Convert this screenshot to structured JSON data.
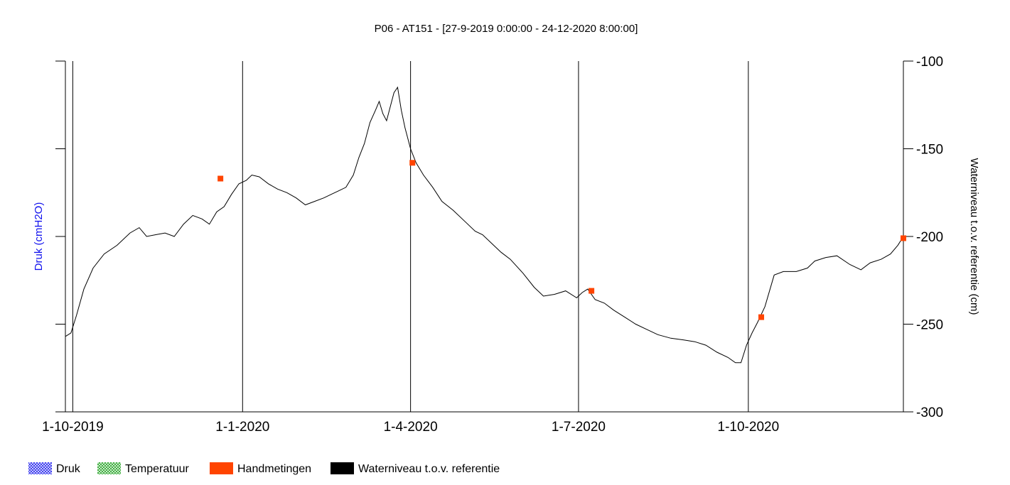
{
  "chart_data": {
    "type": "line",
    "title": "P06 - AT151 -  [27-9-2019 0:00:00 - 24-12-2020 8:00:00]",
    "ylabel_left": "Druk (cmH2O)",
    "ylabel_right": "Waterniveau t.o.v. referentie (cm)",
    "xlim": [
      "2019-09-27",
      "2020-12-24"
    ],
    "ylim": [
      -300,
      -100
    ],
    "yticks": [
      -100,
      -150,
      -200,
      -250,
      -300
    ],
    "xticks": [
      {
        "date": "2019-10-01",
        "label": "1-10-2019"
      },
      {
        "date": "2020-01-01",
        "label": "1-1-2020"
      },
      {
        "date": "2020-04-01",
        "label": "1-4-2020"
      },
      {
        "date": "2020-07-01",
        "label": "1-7-2020"
      },
      {
        "date": "2020-10-01",
        "label": "1-10-2020"
      }
    ],
    "grid": "vertical at x ticks",
    "series": [
      {
        "name": "Waterniveau t.o.v. referentie",
        "color": "#000000",
        "points": [
          [
            "2019-09-27",
            -257
          ],
          [
            "2019-09-30",
            -255
          ],
          [
            "2019-10-03",
            -245
          ],
          [
            "2019-10-07",
            -230
          ],
          [
            "2019-10-12",
            -218
          ],
          [
            "2019-10-18",
            -210
          ],
          [
            "2019-10-25",
            -205
          ],
          [
            "2019-11-01",
            -198
          ],
          [
            "2019-11-06",
            -195
          ],
          [
            "2019-11-10",
            -200
          ],
          [
            "2019-11-15",
            -199
          ],
          [
            "2019-11-20",
            -198
          ],
          [
            "2019-11-25",
            -200
          ],
          [
            "2019-11-30",
            -193
          ],
          [
            "2019-12-05",
            -188
          ],
          [
            "2019-12-10",
            -190
          ],
          [
            "2019-12-14",
            -193
          ],
          [
            "2019-12-18",
            -186
          ],
          [
            "2019-12-22",
            -183
          ],
          [
            "2019-12-26",
            -176
          ],
          [
            "2019-12-30",
            -170
          ],
          [
            "2020-01-03",
            -168
          ],
          [
            "2020-01-06",
            -165
          ],
          [
            "2020-01-10",
            -166
          ],
          [
            "2020-01-15",
            -170
          ],
          [
            "2020-01-20",
            -173
          ],
          [
            "2020-01-25",
            -175
          ],
          [
            "2020-01-30",
            -178
          ],
          [
            "2020-02-04",
            -182
          ],
          [
            "2020-02-09",
            -180
          ],
          [
            "2020-02-14",
            -178
          ],
          [
            "2020-02-18",
            -176
          ],
          [
            "2020-02-22",
            -174
          ],
          [
            "2020-02-26",
            -172
          ],
          [
            "2020-03-01",
            -165
          ],
          [
            "2020-03-04",
            -155
          ],
          [
            "2020-03-07",
            -147
          ],
          [
            "2020-03-10",
            -135
          ],
          [
            "2020-03-13",
            -128
          ],
          [
            "2020-03-15",
            -123
          ],
          [
            "2020-03-17",
            -130
          ],
          [
            "2020-03-19",
            -134
          ],
          [
            "2020-03-21",
            -126
          ],
          [
            "2020-03-23",
            -118
          ],
          [
            "2020-03-25",
            -115
          ],
          [
            "2020-03-27",
            -128
          ],
          [
            "2020-03-29",
            -138
          ],
          [
            "2020-04-01",
            -150
          ],
          [
            "2020-04-04",
            -158
          ],
          [
            "2020-04-08",
            -165
          ],
          [
            "2020-04-13",
            -172
          ],
          [
            "2020-04-18",
            -180
          ],
          [
            "2020-04-24",
            -185
          ],
          [
            "2020-05-01",
            -192
          ],
          [
            "2020-05-06",
            -197
          ],
          [
            "2020-05-10",
            -199
          ],
          [
            "2020-05-15",
            -204
          ],
          [
            "2020-05-20",
            -209
          ],
          [
            "2020-05-25",
            -213
          ],
          [
            "2020-06-01",
            -221
          ],
          [
            "2020-06-07",
            -229
          ],
          [
            "2020-06-12",
            -234
          ],
          [
            "2020-06-18",
            -233
          ],
          [
            "2020-06-24",
            -231
          ],
          [
            "2020-06-30",
            -235
          ],
          [
            "2020-07-03",
            -232
          ],
          [
            "2020-07-06",
            -230
          ],
          [
            "2020-07-10",
            -236
          ],
          [
            "2020-07-15",
            -238
          ],
          [
            "2020-07-20",
            -242
          ],
          [
            "2020-07-26",
            -246
          ],
          [
            "2020-08-01",
            -250
          ],
          [
            "2020-08-07",
            -253
          ],
          [
            "2020-08-13",
            -256
          ],
          [
            "2020-08-20",
            -258
          ],
          [
            "2020-08-27",
            -259
          ],
          [
            "2020-09-02",
            -260
          ],
          [
            "2020-09-08",
            -262
          ],
          [
            "2020-09-14",
            -266
          ],
          [
            "2020-09-20",
            -269
          ],
          [
            "2020-09-24",
            -272
          ],
          [
            "2020-09-27",
            -272
          ],
          [
            "2020-09-30",
            -262
          ],
          [
            "2020-10-03",
            -255
          ],
          [
            "2020-10-06",
            -249
          ],
          [
            "2020-10-10",
            -240
          ],
          [
            "2020-10-15",
            -222
          ],
          [
            "2020-10-20",
            -220
          ],
          [
            "2020-10-27",
            -220
          ],
          [
            "2020-11-02",
            -218
          ],
          [
            "2020-11-06",
            -214
          ],
          [
            "2020-11-12",
            -212
          ],
          [
            "2020-11-18",
            -211
          ],
          [
            "2020-11-25",
            -216
          ],
          [
            "2020-12-01",
            -219
          ],
          [
            "2020-12-06",
            -215
          ],
          [
            "2020-12-12",
            -213
          ],
          [
            "2020-12-17",
            -210
          ],
          [
            "2020-12-21",
            -205
          ],
          [
            "2020-12-24",
            -200
          ]
        ]
      },
      {
        "name": "Handmetingen",
        "color": "#ff4400",
        "points": [
          [
            "2019-12-20",
            -167
          ],
          [
            "2020-04-02",
            -158
          ],
          [
            "2020-07-08",
            -231
          ],
          [
            "2020-10-08",
            -246
          ],
          [
            "2020-12-24",
            -201
          ]
        ]
      }
    ],
    "legend": {
      "placement": "bottom",
      "items": [
        {
          "label": "Druk",
          "color": "#3333ee",
          "pattern": "hatched"
        },
        {
          "label": "Temperatuur",
          "color": "#33aa33",
          "pattern": "hatched"
        },
        {
          "label": "Handmetingen",
          "color": "#ff4400",
          "pattern": "solid"
        },
        {
          "label": "Waterniveau t.o.v. referentie",
          "color": "#000000",
          "pattern": "solid"
        }
      ]
    }
  }
}
